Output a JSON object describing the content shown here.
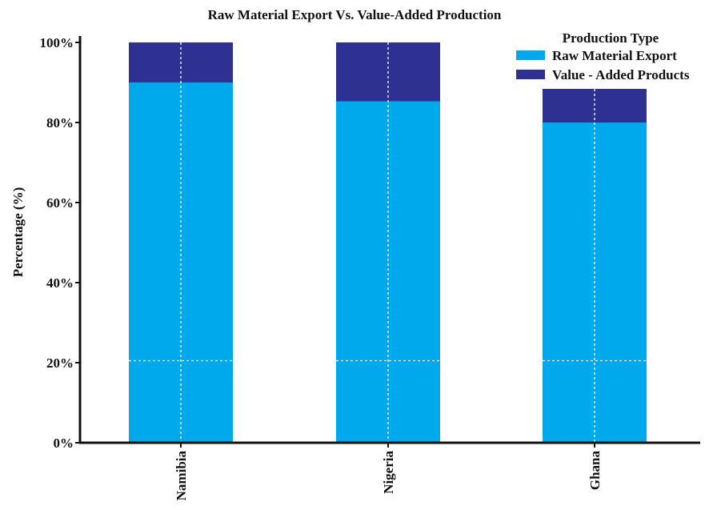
{
  "chart_data": {
    "type": "bar",
    "stacked": true,
    "title": "Raw Material Export Vs. Value-Added Production",
    "xlabel": "",
    "ylabel": "Percentage (%)",
    "ylim": [
      0,
      100
    ],
    "yticks": [
      "0%",
      "20%",
      "40%",
      "60%",
      "80%",
      "100%"
    ],
    "categories": [
      "Namibia",
      "Nigeria",
      "Ghana"
    ],
    "series": [
      {
        "name": "Raw Material Export",
        "color": "#00a9ec",
        "values": [
          90,
          85.3,
          80
        ]
      },
      {
        "name": "Value - Added Products",
        "color": "#2e3192",
        "values": [
          10,
          14.7,
          8.4
        ]
      }
    ],
    "legend": {
      "title": "Production Type",
      "position": "top-right"
    },
    "grid": "dashed-white-partial"
  }
}
